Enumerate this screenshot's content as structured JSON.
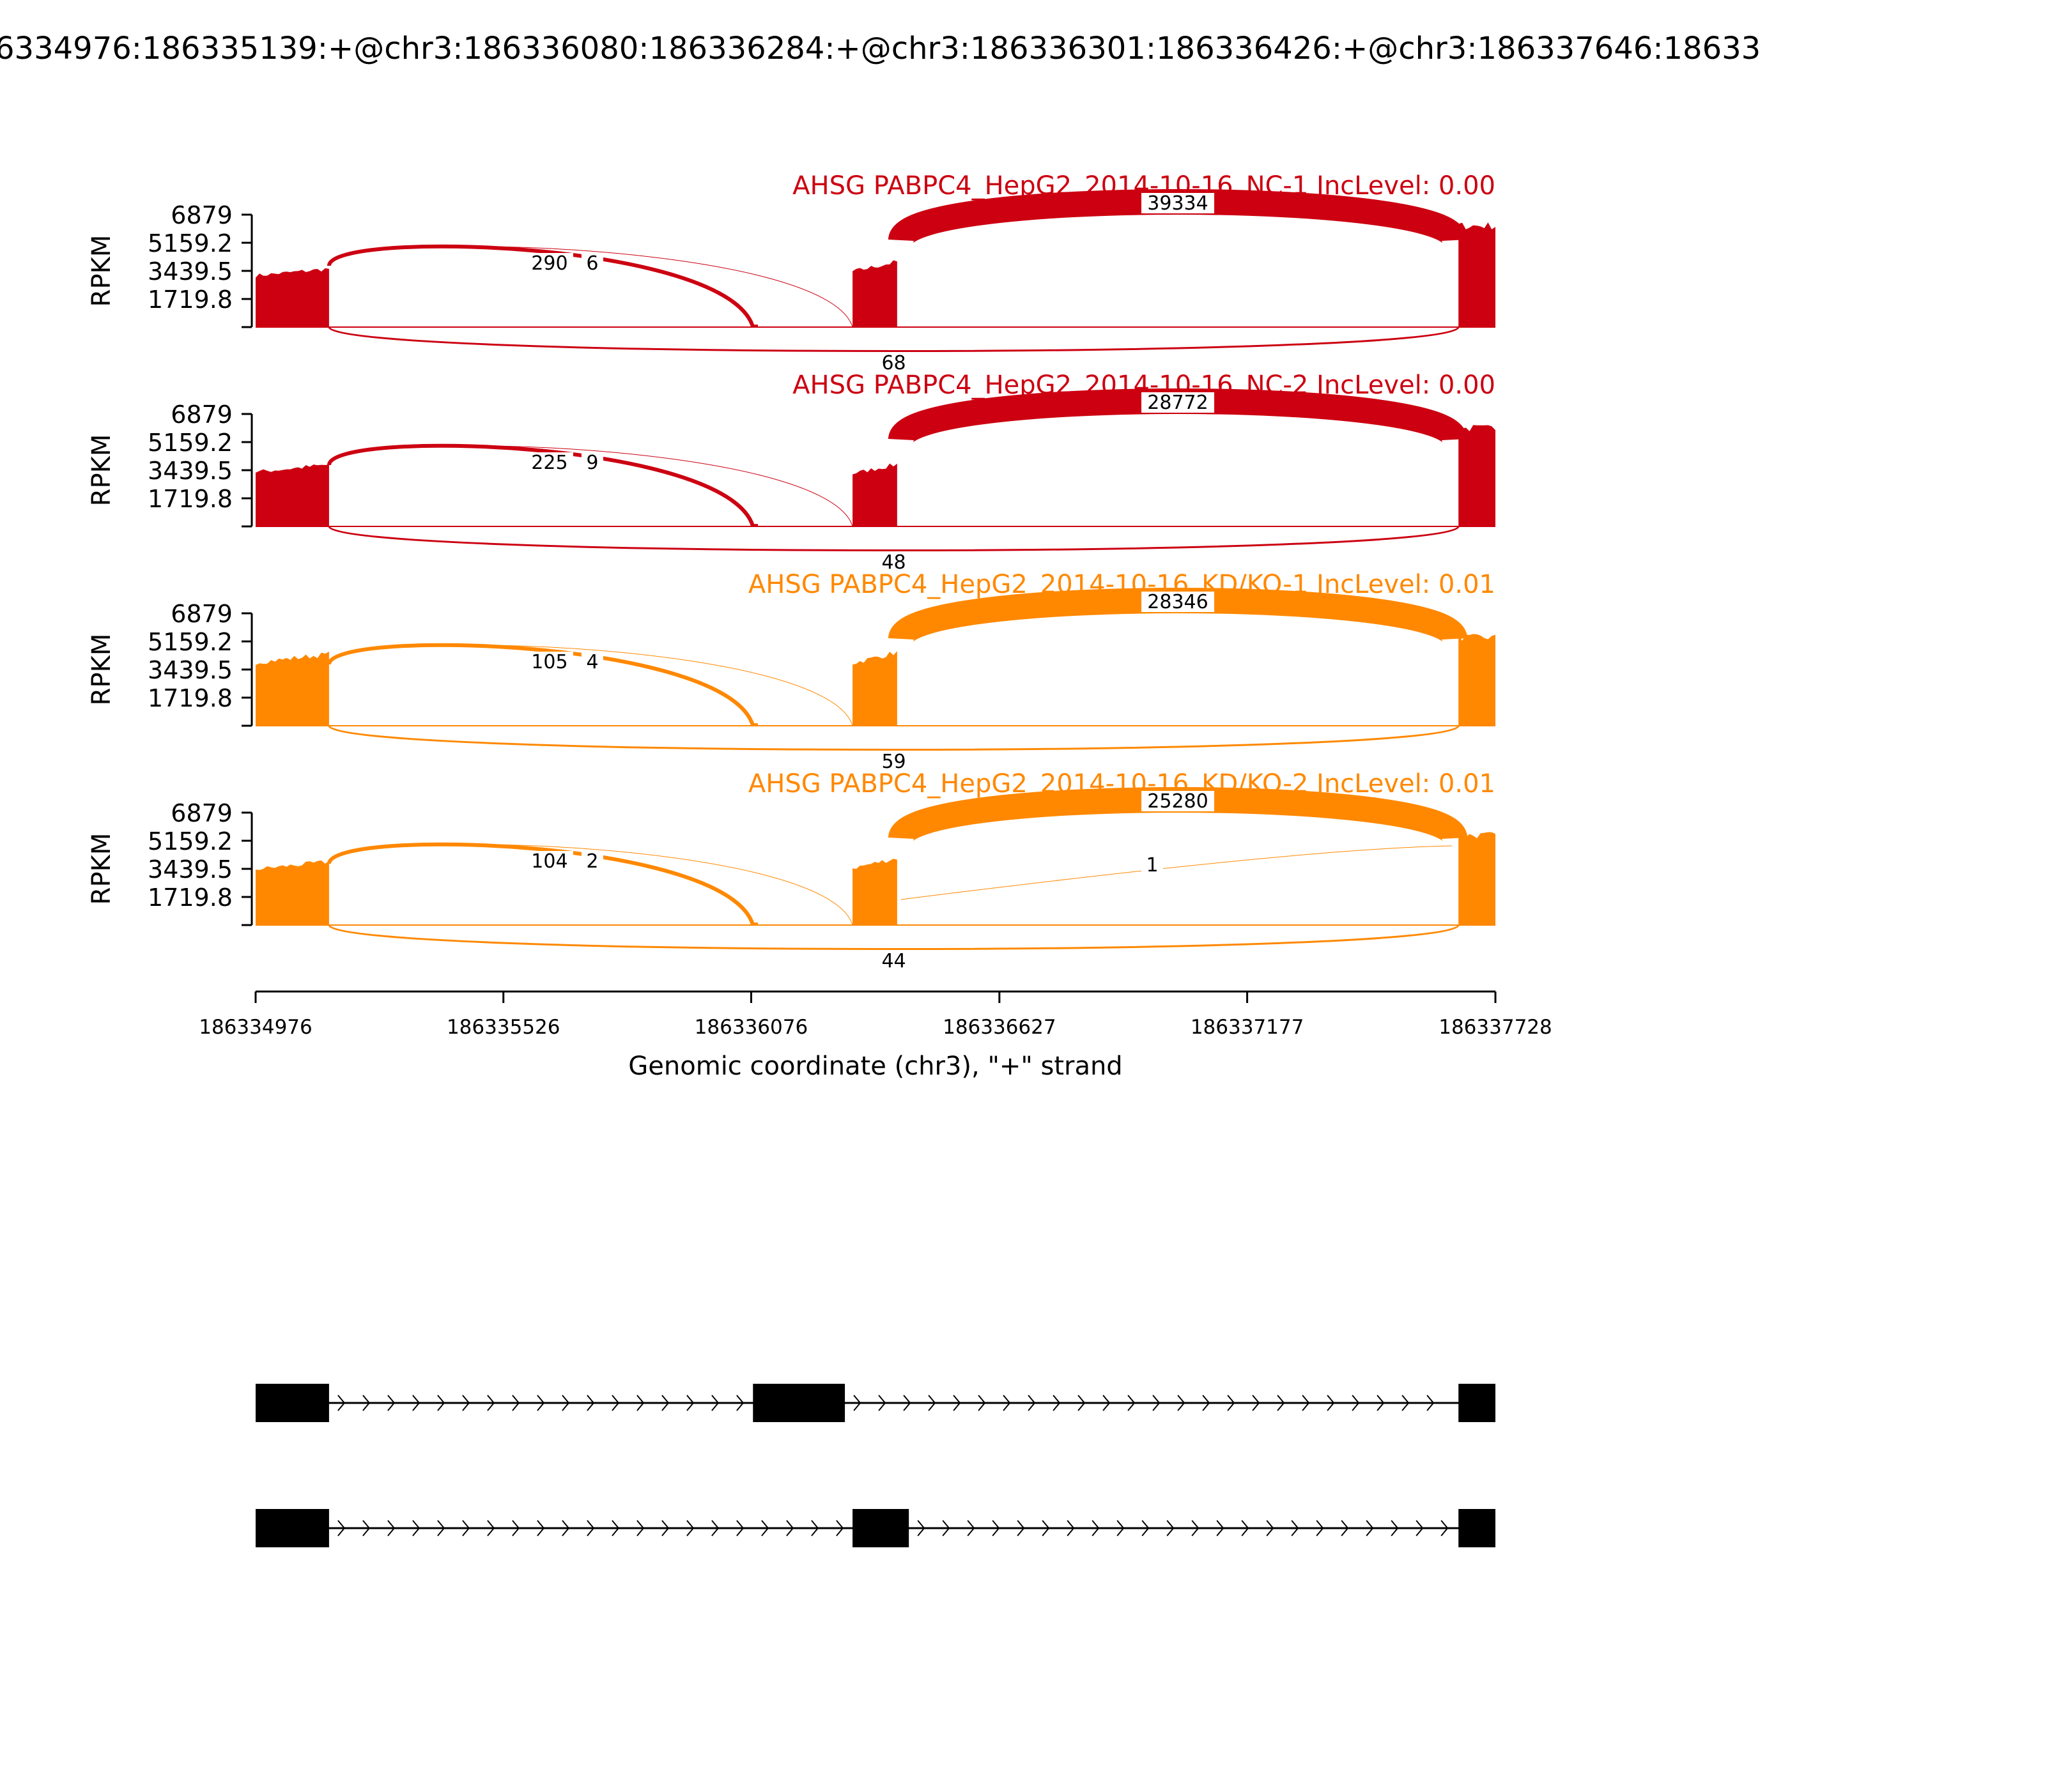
{
  "chart_data": {
    "type": "area",
    "title": "6334976:186335139:+@chr3:186336080:186336284:+@chr3:186336301:186336426:+@chr3:186337646:18633",
    "xlabel": "Genomic coordinate (chr3), \"+\" strand",
    "ylabel": "RPKM",
    "xlim": [
      186334976,
      186337728
    ],
    "ylim": [
      0,
      6879
    ],
    "xticks": [
      "186334976",
      "186335526",
      "186336076",
      "186336627",
      "186337177",
      "186337728"
    ],
    "yticks": [
      "6879",
      "5159.2",
      "3439.5",
      "1719.8"
    ],
    "colors": {
      "NC": "#cc0011",
      "KD": "#ff8800",
      "gene": "#000000"
    },
    "series": [
      {
        "name": "AHSG PABPC4_HepG2_2014-10-16_NC-1 IncLevel: 0.00",
        "color_group": "NC",
        "coverage": [
          {
            "start": 186334976,
            "end": 186335139,
            "value": 3500
          },
          {
            "start": 186336080,
            "end": 186336091,
            "value": 150
          },
          {
            "start": 186336301,
            "end": 186336400,
            "value": 4000
          },
          {
            "start": 186337646,
            "end": 186337728,
            "value": 6200
          }
        ],
        "junctions": [
          {
            "start": 186335139,
            "end": 186336080,
            "count": 290,
            "label": "290"
          },
          {
            "start": 186335139,
            "end": 186336301,
            "count": 6,
            "label": "6"
          },
          {
            "start": 186336400,
            "end": 186337646,
            "count": 39334,
            "label": "39334"
          },
          {
            "start": 186335139,
            "end": 186337646,
            "count": 68,
            "label": "68"
          }
        ]
      },
      {
        "name": "AHSG PABPC4_HepG2_2014-10-16_NC-2 IncLevel: 0.00",
        "color_group": "NC",
        "coverage": [
          {
            "start": 186334976,
            "end": 186335139,
            "value": 3700
          },
          {
            "start": 186336080,
            "end": 186336091,
            "value": 150
          },
          {
            "start": 186336301,
            "end": 186336400,
            "value": 3800
          },
          {
            "start": 186337646,
            "end": 186337728,
            "value": 6000
          }
        ],
        "junctions": [
          {
            "start": 186335139,
            "end": 186336080,
            "count": 225,
            "label": "225"
          },
          {
            "start": 186335139,
            "end": 186336301,
            "count": 9,
            "label": "9"
          },
          {
            "start": 186336400,
            "end": 186337646,
            "count": 28772,
            "label": "28772"
          },
          {
            "start": 186335139,
            "end": 186337646,
            "count": 48,
            "label": "48"
          }
        ]
      },
      {
        "name": "AHSG PABPC4_HepG2_2014-10-16_KD/KO-1 IncLevel: 0.01",
        "color_group": "KD",
        "coverage": [
          {
            "start": 186334976,
            "end": 186335139,
            "value": 4300
          },
          {
            "start": 186336080,
            "end": 186336091,
            "value": 150
          },
          {
            "start": 186336301,
            "end": 186336400,
            "value": 4500
          },
          {
            "start": 186337646,
            "end": 186337728,
            "value": 5400
          }
        ],
        "junctions": [
          {
            "start": 186335139,
            "end": 186336080,
            "count": 105,
            "label": "105"
          },
          {
            "start": 186335139,
            "end": 186336301,
            "count": 4,
            "label": "4"
          },
          {
            "start": 186336400,
            "end": 186337646,
            "count": 28346,
            "label": "28346"
          },
          {
            "start": 186335139,
            "end": 186337646,
            "count": 59,
            "label": "59"
          }
        ]
      },
      {
        "name": "AHSG PABPC4_HepG2_2014-10-16_KD/KO-2 IncLevel: 0.01",
        "color_group": "KD",
        "coverage": [
          {
            "start": 186334976,
            "end": 186335139,
            "value": 3800
          },
          {
            "start": 186336080,
            "end": 186336091,
            "value": 150
          },
          {
            "start": 186336301,
            "end": 186336400,
            "value": 4100
          },
          {
            "start": 186337646,
            "end": 186337728,
            "value": 5500
          }
        ],
        "junctions": [
          {
            "start": 186335139,
            "end": 186336080,
            "count": 104,
            "label": "104"
          },
          {
            "start": 186335139,
            "end": 186336301,
            "count": 2,
            "label": "2"
          },
          {
            "start": 186336400,
            "end": 186337646,
            "count": 25280,
            "label": "25280"
          },
          {
            "start": 186336400,
            "end": 186337646,
            "count": 1,
            "label": "1"
          },
          {
            "start": 186335139,
            "end": 186337646,
            "count": 44,
            "label": "44"
          }
        ]
      }
    ],
    "gene_models": [
      {
        "exons": [
          [
            186334976,
            186335139
          ],
          [
            186336080,
            186336284
          ],
          [
            186337646,
            186337728
          ]
        ]
      },
      {
        "exons": [
          [
            186334976,
            186335139
          ],
          [
            186336301,
            186336426
          ],
          [
            186337646,
            186337728
          ]
        ]
      }
    ]
  }
}
